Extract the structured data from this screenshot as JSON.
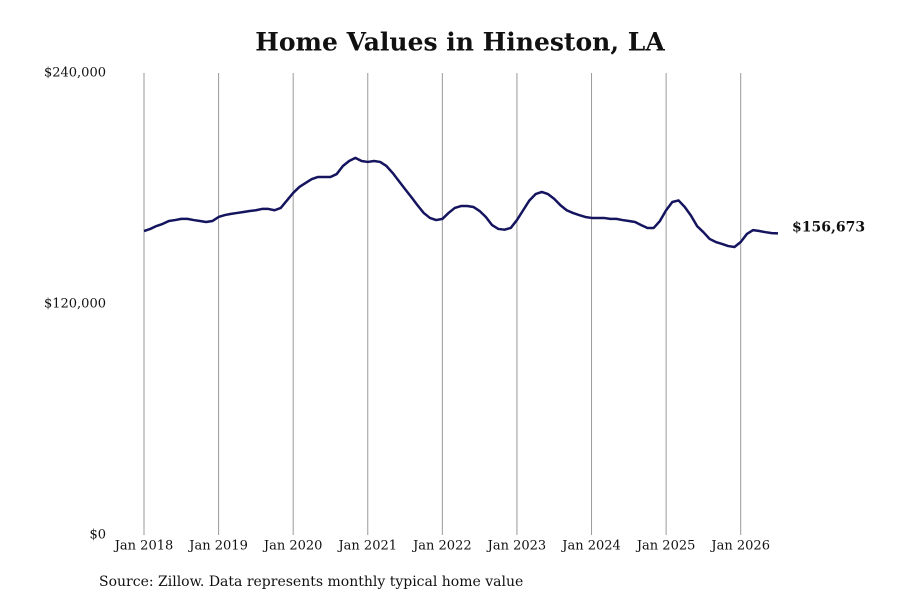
{
  "chart_data": {
    "type": "line",
    "title": "Home Values in Hineston, LA",
    "source": "Source: Zillow. Data represents monthly typical home value",
    "end_label": "$156,673",
    "x": [
      "2018-01",
      "2018-02",
      "2018-03",
      "2018-04",
      "2018-05",
      "2018-06",
      "2018-07",
      "2018-08",
      "2018-09",
      "2018-10",
      "2018-11",
      "2018-12",
      "2019-01",
      "2019-02",
      "2019-03",
      "2019-04",
      "2019-05",
      "2019-06",
      "2019-07",
      "2019-08",
      "2019-09",
      "2019-10",
      "2019-11",
      "2019-12",
      "2020-01",
      "2020-02",
      "2020-03",
      "2020-04",
      "2020-05",
      "2020-06",
      "2020-07",
      "2020-08",
      "2020-09",
      "2020-10",
      "2020-11",
      "2020-12",
      "2021-01",
      "2021-02",
      "2021-03",
      "2021-04",
      "2021-05",
      "2021-06",
      "2021-07",
      "2021-08",
      "2021-09",
      "2021-10",
      "2021-11",
      "2021-12",
      "2022-01",
      "2022-02",
      "2022-03",
      "2022-04",
      "2022-05",
      "2022-06",
      "2022-07",
      "2022-08",
      "2022-09",
      "2022-10",
      "2022-11",
      "2022-12",
      "2023-01",
      "2023-02",
      "2023-03",
      "2023-04",
      "2023-05",
      "2023-06",
      "2023-07",
      "2023-08",
      "2023-09",
      "2023-10",
      "2023-11",
      "2023-12",
      "2024-01",
      "2024-02",
      "2024-03",
      "2024-04",
      "2024-05",
      "2024-06",
      "2024-07",
      "2024-08",
      "2024-09",
      "2024-10",
      "2024-11",
      "2024-12",
      "2025-01",
      "2025-02",
      "2025-03",
      "2025-04",
      "2025-05",
      "2025-06",
      "2025-07",
      "2025-08",
      "2025-09",
      "2025-10",
      "2025-11",
      "2025-12",
      "2026-01",
      "2026-02",
      "2026-03",
      "2026-04",
      "2026-05",
      "2026-06",
      "2026-07"
    ],
    "series": [
      {
        "name": "Home value",
        "color": "#14145f",
        "values": [
          157900,
          159000,
          160500,
          161600,
          163100,
          163600,
          164200,
          164200,
          163600,
          163100,
          162600,
          163100,
          165200,
          166200,
          166800,
          167300,
          167800,
          168300,
          168700,
          169400,
          169400,
          168700,
          169900,
          173800,
          177700,
          180800,
          182900,
          184900,
          186000,
          186000,
          186000,
          187500,
          191700,
          194300,
          195900,
          194300,
          193800,
          194300,
          193800,
          191700,
          188100,
          183900,
          179700,
          175600,
          171300,
          167300,
          164700,
          163600,
          164200,
          167300,
          169900,
          170900,
          170900,
          170400,
          168300,
          165200,
          161000,
          159000,
          158600,
          159500,
          163600,
          168700,
          173800,
          177100,
          178200,
          177100,
          174600,
          171300,
          168700,
          167300,
          166200,
          165200,
          164700,
          164700,
          164700,
          164200,
          164200,
          163600,
          163100,
          162600,
          161000,
          159500,
          159500,
          163100,
          168700,
          173000,
          173800,
          170400,
          165900,
          160400,
          157300,
          153800,
          152200,
          151200,
          150100,
          149600,
          152200,
          156400,
          158400,
          157900,
          157300,
          156800,
          156673
        ]
      }
    ],
    "xlim": [
      "2018-01",
      "2026-07"
    ],
    "xticks": [
      {
        "value": "2018-01",
        "label": "Jan 2018"
      },
      {
        "value": "2019-01",
        "label": "Jan 2019"
      },
      {
        "value": "2020-01",
        "label": "Jan 2020"
      },
      {
        "value": "2021-01",
        "label": "Jan 2021"
      },
      {
        "value": "2022-01",
        "label": "Jan 2022"
      },
      {
        "value": "2023-01",
        "label": "Jan 2023"
      },
      {
        "value": "2024-01",
        "label": "Jan 2024"
      },
      {
        "value": "2025-01",
        "label": "Jan 2025"
      },
      {
        "value": "2026-01",
        "label": "Jan 2026"
      }
    ],
    "ylim": [
      0,
      240000
    ],
    "yticks": [
      {
        "value": 0,
        "label": "$0"
      },
      {
        "value": 120000,
        "label": "$120,000"
      },
      {
        "value": 240000,
        "label": "$240,000"
      }
    ],
    "grid": "x"
  }
}
